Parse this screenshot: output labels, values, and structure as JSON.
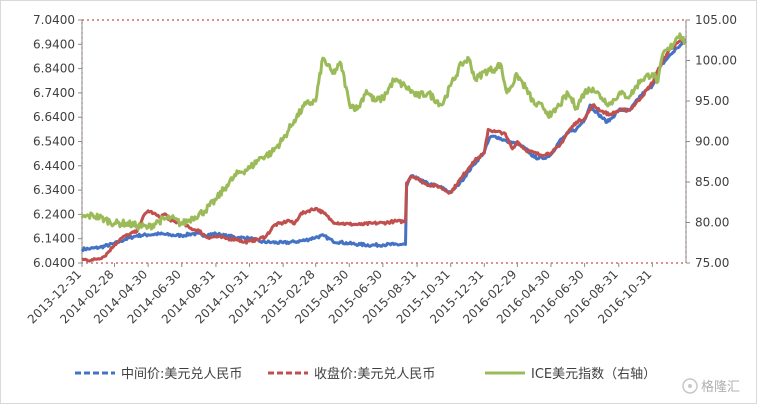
{
  "chart_data": {
    "type": "line",
    "title": "",
    "xlabel": "",
    "x_ticks": [
      "2013-12-31",
      "2014-02-28",
      "2014-04-30",
      "2014-06-30",
      "2014-08-31",
      "2014-10-31",
      "2014-12-31",
      "2015-02-28",
      "2015-04-30",
      "2015-06-30",
      "2015-08-31",
      "2015-10-31",
      "2015-12-31",
      "2016-02-29",
      "2016-04-30",
      "2016-06-30",
      "2016-08-31",
      "2016-10-31"
    ],
    "y_left": {
      "ticks": [
        "6.0400",
        "6.1400",
        "6.2400",
        "6.3400",
        "6.4400",
        "6.5400",
        "6.6400",
        "6.7400",
        "6.8400",
        "6.9400",
        "7.0400"
      ],
      "range": [
        6.04,
        7.04
      ]
    },
    "y_right": {
      "ticks": [
        "75.00",
        "80.00",
        "85.00",
        "90.00",
        "95.00",
        "100.00",
        "105.00"
      ],
      "range": [
        75,
        105
      ]
    },
    "legend_position": "bottom",
    "grid": false,
    "series": [
      {
        "name": "中间价:美元兑人民币",
        "axis": "left",
        "color": "#4472c4",
        "style": "dashed",
        "points": [
          [
            "2013-12-31",
            6.097
          ],
          [
            "2014-01-15",
            6.099
          ],
          [
            "2014-02-01",
            6.104
          ],
          [
            "2014-02-28",
            6.12
          ],
          [
            "2014-03-20",
            6.138
          ],
          [
            "2014-04-10",
            6.153
          ],
          [
            "2014-04-30",
            6.156
          ],
          [
            "2014-05-20",
            6.16
          ],
          [
            "2014-06-10",
            6.155
          ],
          [
            "2014-06-30",
            6.153
          ],
          [
            "2014-07-20",
            6.161
          ],
          [
            "2014-08-10",
            6.155
          ],
          [
            "2014-08-31",
            6.16
          ],
          [
            "2014-09-20",
            6.151
          ],
          [
            "2014-10-10",
            6.145
          ],
          [
            "2014-10-31",
            6.142
          ],
          [
            "2014-11-20",
            6.128
          ],
          [
            "2014-12-10",
            6.125
          ],
          [
            "2014-12-31",
            6.123
          ],
          [
            "2015-01-20",
            6.127
          ],
          [
            "2015-02-10",
            6.134
          ],
          [
            "2015-02-28",
            6.146
          ],
          [
            "2015-03-15",
            6.152
          ],
          [
            "2015-03-31",
            6.13
          ],
          [
            "2015-04-15",
            6.125
          ],
          [
            "2015-04-30",
            6.12
          ],
          [
            "2015-05-20",
            6.116
          ],
          [
            "2015-06-10",
            6.113
          ],
          [
            "2015-06-30",
            6.115
          ],
          [
            "2015-07-20",
            6.116
          ],
          [
            "2015-08-10",
            6.116
          ],
          [
            "2015-08-12",
            6.355
          ],
          [
            "2015-08-20",
            6.397
          ],
          [
            "2015-08-31",
            6.387
          ],
          [
            "2015-09-20",
            6.366
          ],
          [
            "2015-10-10",
            6.355
          ],
          [
            "2015-10-31",
            6.33
          ],
          [
            "2015-11-20",
            6.378
          ],
          [
            "2015-12-10",
            6.44
          ],
          [
            "2015-12-31",
            6.497
          ],
          [
            "2016-01-10",
            6.556
          ],
          [
            "2016-01-20",
            6.562
          ],
          [
            "2016-02-10",
            6.54
          ],
          [
            "2016-02-29",
            6.53
          ],
          [
            "2016-03-15",
            6.51
          ],
          [
            "2016-03-31",
            6.475
          ],
          [
            "2016-04-15",
            6.47
          ],
          [
            "2016-04-30",
            6.486
          ],
          [
            "2016-05-15",
            6.54
          ],
          [
            "2016-05-31",
            6.575
          ],
          [
            "2016-06-15",
            6.59
          ],
          [
            "2016-06-30",
            6.63
          ],
          [
            "2016-07-10",
            6.69
          ],
          [
            "2016-07-25",
            6.652
          ],
          [
            "2016-08-10",
            6.62
          ],
          [
            "2016-08-20",
            6.64
          ],
          [
            "2016-08-31",
            6.67
          ],
          [
            "2016-09-20",
            6.668
          ],
          [
            "2016-10-10",
            6.73
          ],
          [
            "2016-10-31",
            6.77
          ],
          [
            "2016-11-15",
            6.85
          ],
          [
            "2016-11-30",
            6.89
          ],
          [
            "2016-12-15",
            6.925
          ],
          [
            "2016-12-30",
            6.952
          ]
        ]
      },
      {
        "name": "收盘价:美元兑人民币",
        "axis": "left",
        "color": "#c0504d",
        "style": "dashed",
        "points": [
          [
            "2013-12-31",
            6.054
          ],
          [
            "2014-01-20",
            6.052
          ],
          [
            "2014-02-10",
            6.068
          ],
          [
            "2014-02-28",
            6.115
          ],
          [
            "2014-03-10",
            6.138
          ],
          [
            "2014-03-25",
            6.157
          ],
          [
            "2014-04-10",
            6.17
          ],
          [
            "2014-04-20",
            6.225
          ],
          [
            "2014-04-30",
            6.255
          ],
          [
            "2014-05-10",
            6.245
          ],
          [
            "2014-05-20",
            6.228
          ],
          [
            "2014-05-31",
            6.242
          ],
          [
            "2014-06-10",
            6.212
          ],
          [
            "2014-06-30",
            6.205
          ],
          [
            "2014-07-15",
            6.183
          ],
          [
            "2014-08-01",
            6.172
          ],
          [
            "2014-08-15",
            6.145
          ],
          [
            "2014-08-31",
            6.148
          ],
          [
            "2014-09-20",
            6.141
          ],
          [
            "2014-10-10",
            6.137
          ],
          [
            "2014-10-20",
            6.125
          ],
          [
            "2014-10-31",
            6.13
          ],
          [
            "2014-11-15",
            6.137
          ],
          [
            "2014-11-30",
            6.15
          ],
          [
            "2014-12-15",
            6.196
          ],
          [
            "2014-12-31",
            6.205
          ],
          [
            "2015-01-10",
            6.216
          ],
          [
            "2015-01-20",
            6.2
          ],
          [
            "2015-01-31",
            6.24
          ],
          [
            "2015-02-15",
            6.255
          ],
          [
            "2015-02-28",
            6.265
          ],
          [
            "2015-03-15",
            6.245
          ],
          [
            "2015-03-31",
            6.21
          ],
          [
            "2015-04-15",
            6.203
          ],
          [
            "2015-04-30",
            6.2
          ],
          [
            "2015-05-20",
            6.198
          ],
          [
            "2015-06-10",
            6.203
          ],
          [
            "2015-06-30",
            6.205
          ],
          [
            "2015-07-20",
            6.211
          ],
          [
            "2015-08-10",
            6.211
          ],
          [
            "2015-08-12",
            6.37
          ],
          [
            "2015-08-20",
            6.398
          ],
          [
            "2015-08-31",
            6.39
          ],
          [
            "2015-09-15",
            6.365
          ],
          [
            "2015-10-10",
            6.355
          ],
          [
            "2015-10-20",
            6.34
          ],
          [
            "2015-10-31",
            6.33
          ],
          [
            "2015-11-20",
            6.392
          ],
          [
            "2015-12-10",
            6.455
          ],
          [
            "2015-12-31",
            6.492
          ],
          [
            "2016-01-07",
            6.59
          ],
          [
            "2016-01-20",
            6.58
          ],
          [
            "2016-02-05",
            6.576
          ],
          [
            "2016-02-20",
            6.51
          ],
          [
            "2016-02-29",
            6.54
          ],
          [
            "2016-03-15",
            6.505
          ],
          [
            "2016-04-10",
            6.485
          ],
          [
            "2016-04-30",
            6.493
          ],
          [
            "2016-05-15",
            6.52
          ],
          [
            "2016-05-31",
            6.58
          ],
          [
            "2016-06-15",
            6.62
          ],
          [
            "2016-06-30",
            6.635
          ],
          [
            "2016-07-15",
            6.69
          ],
          [
            "2016-07-31",
            6.665
          ],
          [
            "2016-08-15",
            6.65
          ],
          [
            "2016-08-31",
            6.668
          ],
          [
            "2016-09-20",
            6.67
          ],
          [
            "2016-10-10",
            6.72
          ],
          [
            "2016-10-31",
            6.782
          ],
          [
            "2016-11-15",
            6.855
          ],
          [
            "2016-11-30",
            6.915
          ],
          [
            "2016-12-15",
            6.945
          ],
          [
            "2016-12-30",
            6.957
          ]
        ]
      },
      {
        "name": "ICE美元指数（右轴）",
        "axis": "right",
        "color": "#9bbb59",
        "style": "solid",
        "points": [
          [
            "2013-12-31",
            80.6
          ],
          [
            "2014-01-20",
            80.9
          ],
          [
            "2014-02-10",
            80.4
          ],
          [
            "2014-02-28",
            79.9
          ],
          [
            "2014-03-20",
            79.9
          ],
          [
            "2014-04-10",
            79.6
          ],
          [
            "2014-04-30",
            79.4
          ],
          [
            "2014-05-20",
            80.2
          ],
          [
            "2014-06-10",
            80.6
          ],
          [
            "2014-06-30",
            79.8
          ],
          [
            "2014-07-20",
            80.6
          ],
          [
            "2014-08-10",
            81.4
          ],
          [
            "2014-08-31",
            82.8
          ],
          [
            "2014-09-20",
            84.6
          ],
          [
            "2014-10-10",
            86.1
          ],
          [
            "2014-10-31",
            86.7
          ],
          [
            "2014-11-20",
            88.0
          ],
          [
            "2014-12-10",
            88.6
          ],
          [
            "2014-12-31",
            90.3
          ],
          [
            "2015-01-20",
            92.6
          ],
          [
            "2015-02-10",
            94.6
          ],
          [
            "2015-02-28",
            95.0
          ],
          [
            "2015-03-13",
            100.3
          ],
          [
            "2015-03-31",
            98.4
          ],
          [
            "2015-04-15",
            99.6
          ],
          [
            "2015-04-30",
            94.7
          ],
          [
            "2015-05-15",
            94.0
          ],
          [
            "2015-05-31",
            96.3
          ],
          [
            "2015-06-15",
            95.0
          ],
          [
            "2015-06-30",
            95.3
          ],
          [
            "2015-07-20",
            97.6
          ],
          [
            "2015-08-10",
            96.8
          ],
          [
            "2015-08-31",
            95.6
          ],
          [
            "2015-09-20",
            96.0
          ],
          [
            "2015-10-15",
            94.5
          ],
          [
            "2015-10-31",
            96.9
          ],
          [
            "2015-11-20",
            99.6
          ],
          [
            "2015-12-03",
            100.2
          ],
          [
            "2015-12-15",
            97.6
          ],
          [
            "2015-12-31",
            98.6
          ],
          [
            "2016-01-20",
            99.0
          ],
          [
            "2016-01-29",
            99.6
          ],
          [
            "2016-02-10",
            96.0
          ],
          [
            "2016-02-29",
            98.2
          ],
          [
            "2016-03-15",
            96.6
          ],
          [
            "2016-03-31",
            94.6
          ],
          [
            "2016-04-15",
            94.3
          ],
          [
            "2016-04-30",
            93.1
          ],
          [
            "2016-05-15",
            94.5
          ],
          [
            "2016-05-31",
            95.9
          ],
          [
            "2016-06-15",
            94.2
          ],
          [
            "2016-06-30",
            96.1
          ],
          [
            "2016-07-15",
            96.6
          ],
          [
            "2016-07-31",
            95.4
          ],
          [
            "2016-08-15",
            94.6
          ],
          [
            "2016-08-31",
            95.9
          ],
          [
            "2016-09-20",
            95.6
          ],
          [
            "2016-10-10",
            97.6
          ],
          [
            "2016-10-31",
            98.4
          ],
          [
            "2016-11-10",
            97.4
          ],
          [
            "2016-11-20",
            101.0
          ],
          [
            "2016-11-30",
            101.3
          ],
          [
            "2016-12-15",
            102.9
          ],
          [
            "2016-12-20",
            103.3
          ],
          [
            "2016-12-30",
            102.2
          ]
        ]
      }
    ]
  },
  "watermark": "格隆汇"
}
